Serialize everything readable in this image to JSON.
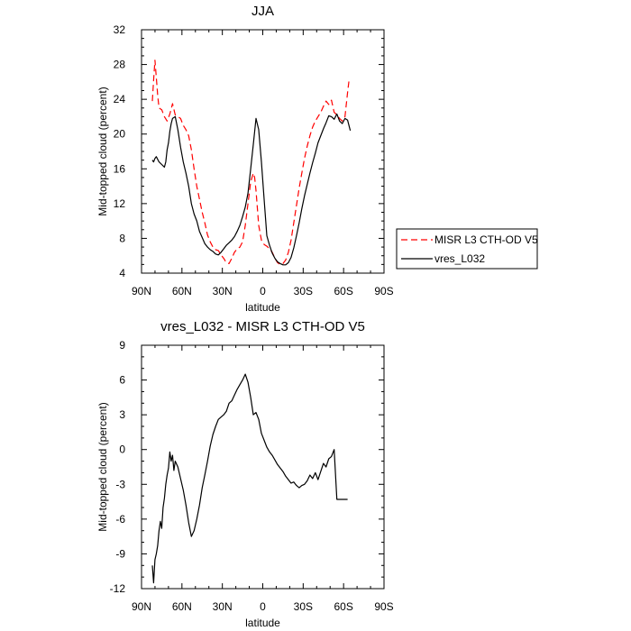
{
  "chart_data": [
    {
      "type": "line",
      "title": "JJA",
      "xlabel": "latitude",
      "ylabel": "Mid-topped cloud (percent)",
      "xlim": [
        90,
        -90
      ],
      "ylim": [
        4,
        32
      ],
      "x_ticks": [
        90,
        60,
        30,
        0,
        -30,
        -60,
        -90
      ],
      "x_tick_labels": [
        "90N",
        "60N",
        "30N",
        "0",
        "30S",
        "60S",
        "90S"
      ],
      "y_ticks": [
        4,
        8,
        12,
        16,
        20,
        24,
        28,
        32
      ],
      "y_tick_labels": [
        "4",
        "8",
        "12",
        "16",
        "20",
        "24",
        "28",
        "32"
      ],
      "legend": {
        "placement": "outside-right"
      },
      "series": [
        {
          "name": "MISR L3 CTH-OD V5",
          "color": "#ff0000",
          "dash": true,
          "x": [
            82,
            81,
            80,
            79,
            78,
            77,
            75,
            73,
            71,
            69,
            67,
            65,
            63,
            61,
            59,
            57,
            55,
            53,
            51,
            49,
            47,
            45,
            43,
            41,
            39,
            37,
            35,
            33,
            31,
            29,
            27,
            25,
            23,
            21,
            19,
            17,
            15,
            13,
            11,
            9,
            7,
            6,
            5,
            3,
            1,
            -1,
            -3,
            -5,
            -7,
            -9,
            -11,
            -13,
            -15,
            -17,
            -19,
            -21,
            -23,
            -25,
            -27,
            -29,
            -31,
            -33,
            -35,
            -37,
            -39,
            -41,
            -43,
            -45,
            -47,
            -49,
            -51,
            -53,
            -55,
            -57,
            -59,
            -61,
            -63,
            -64
          ],
          "y": [
            23.8,
            26.2,
            28.5,
            26.5,
            24.5,
            23.0,
            22.8,
            22.0,
            21.5,
            22.3,
            23.5,
            22.2,
            22.0,
            21.8,
            21.0,
            20.5,
            19.8,
            18.2,
            16.0,
            14.0,
            12.5,
            11.0,
            9.8,
            8.4,
            7.6,
            7.0,
            6.7,
            6.6,
            6.1,
            5.7,
            5.2,
            5.1,
            5.7,
            6.4,
            6.8,
            7.0,
            7.6,
            9.5,
            12.0,
            14.5,
            15.5,
            15.0,
            13.5,
            9.5,
            7.8,
            7.3,
            7.1,
            6.8,
            6.4,
            5.7,
            5.2,
            5.0,
            5.1,
            5.5,
            6.4,
            7.8,
            9.8,
            11.8,
            13.8,
            15.5,
            17.2,
            18.6,
            19.8,
            20.8,
            21.5,
            22.0,
            22.5,
            23.2,
            23.8,
            23.4,
            23.9,
            22.5,
            22.2,
            21.8,
            21.5,
            22.0,
            24.8,
            26.1
          ]
        },
        {
          "name": "vres_L032",
          "color": "#000000",
          "dash": false,
          "x": [
            82,
            81,
            80,
            79,
            77,
            75,
            73,
            72,
            71,
            70,
            69,
            68,
            67,
            65,
            63,
            61,
            59,
            57,
            55,
            53,
            51,
            49,
            47,
            45,
            43,
            41,
            39,
            37,
            35,
            33,
            31,
            29,
            27,
            25,
            23,
            21,
            19,
            17,
            15,
            13,
            11,
            9,
            7,
            5,
            3,
            1,
            -1,
            -3,
            -5,
            -7,
            -9,
            -11,
            -13,
            -15,
            -17,
            -19,
            -21,
            -23,
            -25,
            -27,
            -29,
            -31,
            -33,
            -35,
            -37,
            -39,
            -41,
            -43,
            -45,
            -47,
            -49,
            -51,
            -53,
            -55,
            -57,
            -59,
            -61,
            -63,
            -65
          ],
          "y": [
            17.0,
            16.8,
            17.2,
            17.4,
            16.8,
            16.5,
            16.2,
            16.8,
            18.2,
            19.0,
            20.3,
            21.2,
            21.8,
            22.0,
            20.5,
            18.5,
            16.8,
            15.5,
            14.0,
            12.0,
            10.8,
            10.0,
            8.8,
            8.1,
            7.4,
            7.0,
            6.7,
            6.5,
            6.2,
            6.1,
            6.4,
            6.8,
            7.2,
            7.5,
            7.8,
            8.2,
            8.8,
            9.5,
            10.5,
            11.6,
            13.2,
            16.0,
            18.8,
            21.8,
            20.5,
            16.8,
            12.5,
            8.3,
            7.2,
            6.3,
            5.7,
            5.3,
            5.1,
            4.95,
            4.95,
            5.2,
            5.8,
            6.9,
            8.3,
            9.8,
            11.4,
            12.9,
            14.2,
            15.5,
            16.7,
            17.8,
            19.0,
            19.8,
            20.6,
            21.3,
            22.1,
            22.0,
            21.7,
            22.3,
            21.5,
            21.2,
            21.8,
            21.6,
            20.4
          ]
        }
      ]
    },
    {
      "type": "line",
      "title": "vres_L032 - MISR L3 CTH-OD V5",
      "xlabel": "latitude",
      "ylabel": "Mid-topped cloud (percent)",
      "xlim": [
        90,
        -90
      ],
      "ylim": [
        -12,
        9
      ],
      "x_ticks": [
        90,
        60,
        30,
        0,
        -30,
        -60,
        -90
      ],
      "x_tick_labels": [
        "90N",
        "60N",
        "30N",
        "0",
        "30S",
        "60S",
        "90S"
      ],
      "y_ticks": [
        -12,
        -9,
        -6,
        -3,
        0,
        3,
        6,
        9
      ],
      "y_tick_labels": [
        "-12",
        "-9",
        "-6",
        "-3",
        "0",
        "3",
        "6",
        "9"
      ],
      "series": [
        {
          "color": "#000000",
          "dash": false,
          "x": [
            82,
            81,
            80,
            79,
            78,
            77,
            76,
            75,
            74,
            73,
            72,
            71,
            70,
            69,
            68,
            67,
            66,
            65,
            63,
            61,
            59,
            57,
            55,
            53,
            51,
            49,
            47,
            45,
            43,
            41,
            39,
            37,
            35,
            33,
            31,
            29,
            27,
            25,
            23,
            21,
            19,
            17,
            15,
            13,
            11,
            9,
            7,
            5,
            3,
            1,
            -1,
            -3,
            -5,
            -7,
            -9,
            -11,
            -13,
            -15,
            -17,
            -19,
            -21,
            -23,
            -25,
            -27,
            -29,
            -31,
            -33,
            -35,
            -37,
            -39,
            -41,
            -43,
            -45,
            -47,
            -49,
            -51,
            -53,
            -55,
            -57,
            -59,
            -60,
            -61,
            -62,
            -63
          ],
          "y": [
            -10.0,
            -11.5,
            -9.5,
            -9.0,
            -8.3,
            -7.0,
            -6.2,
            -6.8,
            -5.0,
            -4.2,
            -3.0,
            -2.2,
            -1.6,
            -0.2,
            -1.0,
            -0.5,
            -1.8,
            -1.0,
            -1.5,
            -2.5,
            -3.5,
            -4.8,
            -6.3,
            -7.5,
            -7.0,
            -6.0,
            -4.8,
            -3.3,
            -2.2,
            -1.0,
            0.3,
            1.3,
            2.0,
            2.6,
            2.8,
            3.0,
            3.3,
            4.0,
            4.2,
            4.7,
            5.2,
            5.6,
            6.0,
            6.5,
            5.8,
            4.5,
            3.0,
            3.2,
            2.6,
            1.4,
            0.8,
            0.2,
            -0.2,
            -0.5,
            -0.9,
            -1.3,
            -1.6,
            -1.9,
            -2.3,
            -2.6,
            -2.9,
            -2.8,
            -3.1,
            -3.3,
            -3.1,
            -3.0,
            -2.7,
            -2.2,
            -2.5,
            -2.0,
            -2.6,
            -1.9,
            -1.2,
            -1.5,
            -0.8,
            -0.6,
            0.0,
            -4.3,
            -4.3,
            -4.3,
            -4.3,
            -4.3,
            -4.3,
            -4.3
          ]
        }
      ]
    }
  ]
}
